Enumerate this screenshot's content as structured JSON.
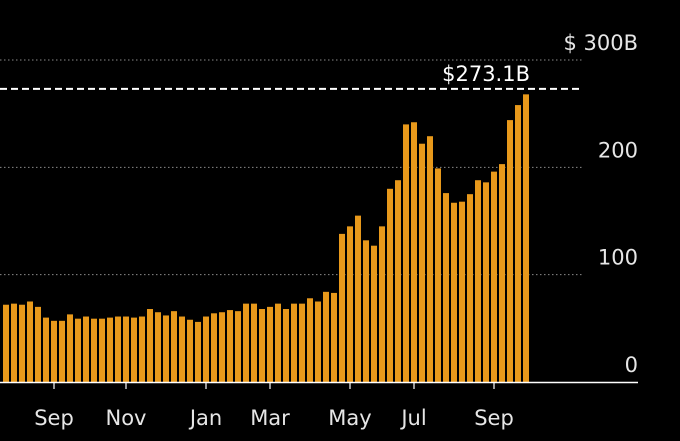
{
  "chart_data": {
    "type": "bar",
    "title": "",
    "xlabel": "",
    "ylabel": "",
    "ylim": [
      0,
      300
    ],
    "y_ticks": [
      {
        "value": 0,
        "label": "0"
      },
      {
        "value": 100,
        "label": "100"
      },
      {
        "value": 200,
        "label": "200"
      },
      {
        "value": 300,
        "label": "$ 300B"
      }
    ],
    "x_ticks": [
      {
        "label": "Sep",
        "at_bar": 6
      },
      {
        "label": "Nov",
        "at_bar": 15
      },
      {
        "label": "Jan",
        "at_bar": 25
      },
      {
        "label": "Mar",
        "at_bar": 33
      },
      {
        "label": "May",
        "at_bar": 43
      },
      {
        "label": "Jul",
        "at_bar": 51
      },
      {
        "label": "Sep",
        "at_bar": 61
      }
    ],
    "series": [
      {
        "values": [
          72,
          73,
          72,
          75,
          70,
          60,
          57,
          57,
          63,
          59,
          61,
          59,
          59,
          60,
          61,
          61,
          60,
          61,
          68,
          65,
          62,
          66,
          61,
          58,
          56,
          61,
          64,
          65,
          67,
          66,
          73,
          73,
          68,
          70,
          73,
          68,
          73,
          73,
          78,
          75,
          84,
          83,
          138,
          145,
          155,
          132,
          127,
          145,
          180,
          188,
          240,
          242,
          222,
          229,
          199,
          176,
          167,
          168,
          175,
          188,
          186,
          196,
          203,
          244,
          258,
          268
        ]
      }
    ],
    "reference_line": {
      "value": 273.1,
      "label": "$273.1B",
      "style": "dashed"
    },
    "bar_color": "#e8991b",
    "grid": true,
    "grid_style": "dotted"
  }
}
